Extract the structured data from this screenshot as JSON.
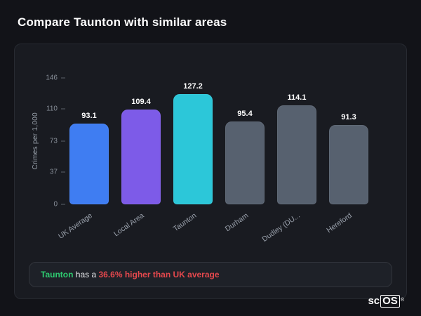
{
  "title": "Compare Taunton with similar areas",
  "chart_data": {
    "type": "bar",
    "title": "",
    "xlabel": "",
    "ylabel": "Crimes per 1,000",
    "categories": [
      "UK Average",
      "Local Area",
      "Taunton",
      "Durham",
      "Dudley (DU...",
      "Hereford"
    ],
    "values": [
      93.1,
      109.4,
      127.2,
      95.4,
      114.1,
      91.3
    ],
    "colors": [
      "#3f7df2",
      "#7d5be8",
      "#2cc7d9",
      "#57616f",
      "#57616f",
      "#57616f"
    ],
    "ylim": [
      0,
      146
    ],
    "yticks": [
      0,
      37,
      73,
      110,
      146
    ],
    "grid": false,
    "legend": false
  },
  "note": {
    "subject": "Taunton",
    "connector": " has a ",
    "statement": "36.6% higher than UK average"
  },
  "logo": {
    "prefix": "sc",
    "boxed": "OS",
    "mark": "®"
  }
}
